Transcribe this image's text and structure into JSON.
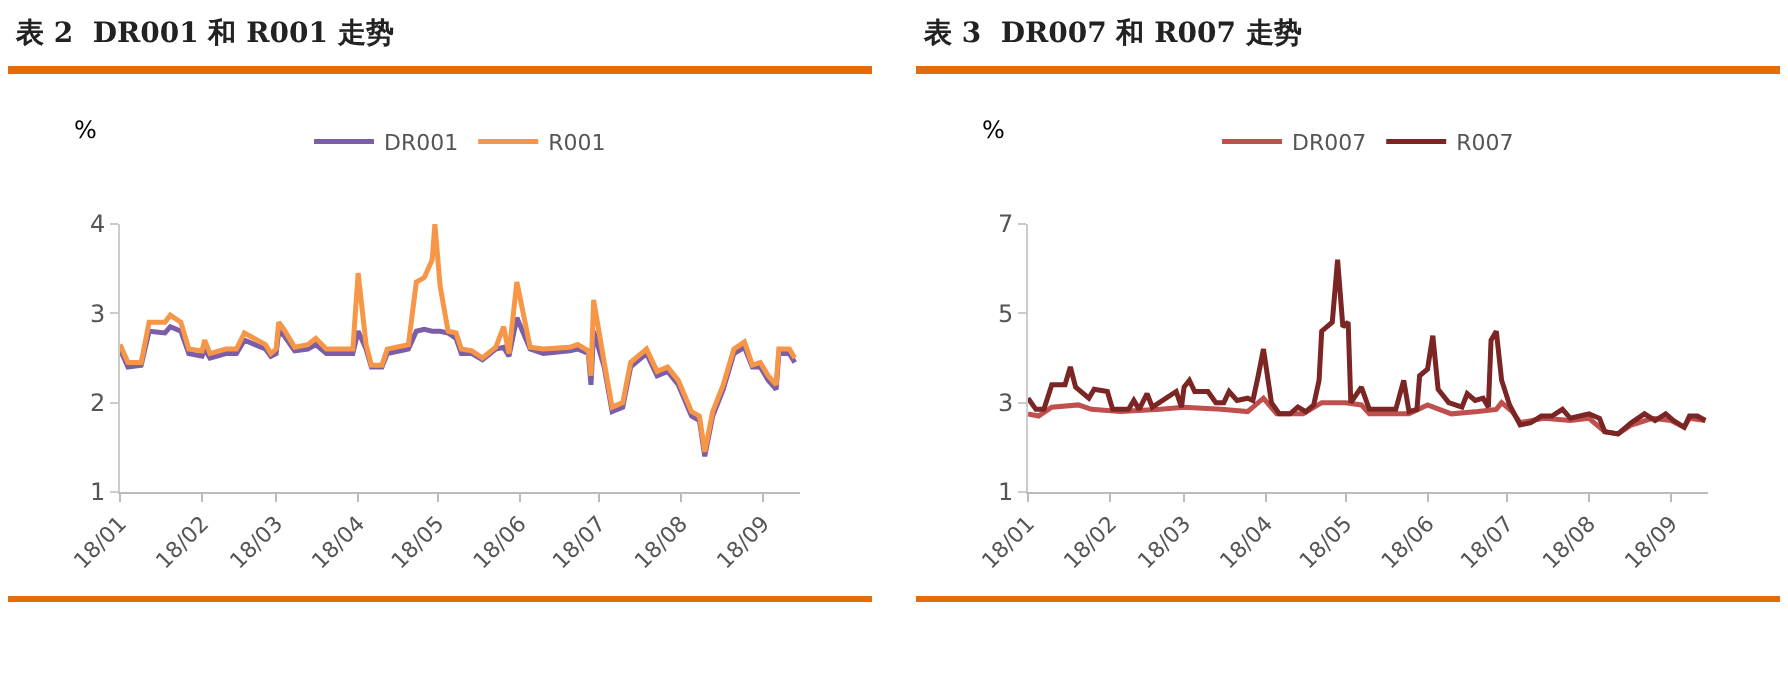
{
  "chart_data": [
    {
      "type": "line",
      "title": "表 2  DR001 和 R001 走势",
      "ylabel": "%",
      "legend": "top",
      "grid": false,
      "marker": "none",
      "line_style": "solid",
      "xlim": [
        "--01-01",
        "--09-15"
      ],
      "xticks": [
        {
          "value": "--01-01",
          "label": "18/01"
        },
        {
          "value": "--02-01",
          "label": "18/02"
        },
        {
          "value": "--03-01",
          "label": "18/03"
        },
        {
          "value": "--04-01",
          "label": "18/04"
        },
        {
          "value": "--05-01",
          "label": "18/05"
        },
        {
          "value": "--06-01",
          "label": "18/06"
        },
        {
          "value": "--07-01",
          "label": "18/07"
        },
        {
          "value": "--08-01",
          "label": "18/08"
        },
        {
          "value": "--09-01",
          "label": "18/09"
        }
      ],
      "ylim": [
        1,
        4
      ],
      "yticks": [
        1,
        2,
        3,
        4
      ],
      "x": [
        "--01-01",
        "--01-04",
        "--01-09",
        "--01-12",
        "--01-18",
        "--01-20",
        "--01-24",
        "--01-27",
        "--02-01",
        "--02-02",
        "--02-04",
        "--02-10",
        "--02-14",
        "--02-17",
        "--02-25",
        "--02-27",
        "--03-01",
        "--03-02",
        "--03-04",
        "--03-08",
        "--03-13",
        "--03-16",
        "--03-20",
        "--03-30",
        "--04-01",
        "--04-04",
        "--04-06",
        "--04-10",
        "--04-12",
        "--04-20",
        "--04-23",
        "--04-26",
        "--04-29",
        "--04-30",
        "--05-02",
        "--05-05",
        "--05-08",
        "--05-10",
        "--05-14",
        "--05-18",
        "--05-23",
        "--05-26",
        "--05-28",
        "--05-31",
        "--06-05",
        "--06-10",
        "--06-20",
        "--06-23",
        "--06-27",
        "--06-28",
        "--06-29",
        "--07-03",
        "--07-06",
        "--07-10",
        "--07-13",
        "--07-19",
        "--07-23",
        "--07-27",
        "--07-31",
        "--08-05",
        "--08-08",
        "--08-10",
        "--08-13",
        "--08-17",
        "--08-21",
        "--08-25",
        "--08-28",
        "--08-31",
        "--09-03",
        "--09-06",
        "--09-07",
        "--09-11",
        "--09-13"
      ],
      "series": [
        {
          "name": "DR001",
          "color": "#7b5ea7",
          "values": [
            2.6,
            2.4,
            2.42,
            2.8,
            2.78,
            2.85,
            2.8,
            2.55,
            2.52,
            2.6,
            2.5,
            2.55,
            2.55,
            2.7,
            2.6,
            2.52,
            2.55,
            2.8,
            2.75,
            2.58,
            2.6,
            2.65,
            2.55,
            2.55,
            2.8,
            2.6,
            2.4,
            2.4,
            2.55,
            2.6,
            2.8,
            2.82,
            2.8,
            2.8,
            2.8,
            2.78,
            2.72,
            2.55,
            2.55,
            2.48,
            2.6,
            2.62,
            2.52,
            2.95,
            2.6,
            2.55,
            2.58,
            2.6,
            2.55,
            2.2,
            2.8,
            2.4,
            1.9,
            1.95,
            2.4,
            2.55,
            2.3,
            2.35,
            2.2,
            1.85,
            1.8,
            1.4,
            1.85,
            2.15,
            2.55,
            2.62,
            2.4,
            2.4,
            2.25,
            2.15,
            2.55,
            2.55,
            2.45
          ]
        },
        {
          "name": "R001",
          "color": "#f79646",
          "values": [
            2.65,
            2.45,
            2.45,
            2.9,
            2.9,
            2.98,
            2.9,
            2.6,
            2.58,
            2.7,
            2.55,
            2.6,
            2.6,
            2.78,
            2.65,
            2.55,
            2.6,
            2.9,
            2.82,
            2.62,
            2.65,
            2.72,
            2.6,
            2.6,
            3.45,
            2.65,
            2.42,
            2.42,
            2.6,
            2.65,
            3.35,
            3.4,
            3.6,
            4.0,
            3.3,
            2.8,
            2.78,
            2.6,
            2.58,
            2.5,
            2.62,
            2.85,
            2.55,
            3.35,
            2.62,
            2.6,
            2.62,
            2.65,
            2.58,
            2.3,
            3.15,
            2.45,
            1.95,
            2.0,
            2.45,
            2.6,
            2.35,
            2.4,
            2.25,
            1.9,
            1.85,
            1.45,
            1.9,
            2.2,
            2.6,
            2.68,
            2.42,
            2.45,
            2.3,
            2.2,
            2.6,
            2.6,
            2.5
          ]
        }
      ]
    },
    {
      "type": "line",
      "title": "表 3  DR007 和 R007 走势",
      "ylabel": "%",
      "legend": "top",
      "grid": false,
      "marker": "none",
      "line_style": "solid",
      "xlim": [
        "--01-01",
        "--09-15"
      ],
      "xticks": [
        {
          "value": "--01-01",
          "label": "18/01"
        },
        {
          "value": "--02-01",
          "label": "18/02"
        },
        {
          "value": "--03-01",
          "label": "18/03"
        },
        {
          "value": "--04-01",
          "label": "18/04"
        },
        {
          "value": "--05-01",
          "label": "18/05"
        },
        {
          "value": "--06-01",
          "label": "18/06"
        },
        {
          "value": "--07-01",
          "label": "18/07"
        },
        {
          "value": "--08-01",
          "label": "18/08"
        },
        {
          "value": "--09-01",
          "label": "18/09"
        }
      ],
      "ylim": [
        1,
        7
      ],
      "yticks": [
        1,
        3,
        5,
        7
      ],
      "series": [
        {
          "name": "DR007",
          "color": "#c0504d",
          "x": [
            "--01-01",
            "--01-05",
            "--01-10",
            "--01-20",
            "--01-25",
            "--02-05",
            "--02-20",
            "--03-01",
            "--03-15",
            "--03-25",
            "--03-31",
            "--04-05",
            "--04-15",
            "--04-22",
            "--05-01",
            "--05-07",
            "--05-10",
            "--05-25",
            "--06-01",
            "--06-10",
            "--06-20",
            "--06-27",
            "--06-29",
            "--07-03",
            "--07-06",
            "--07-15",
            "--07-25",
            "--08-01",
            "--08-07",
            "--08-12",
            "--08-17",
            "--08-25",
            "--09-01",
            "--09-06",
            "--09-08",
            "--09-14"
          ],
          "values": [
            2.75,
            2.7,
            2.9,
            2.95,
            2.85,
            2.8,
            2.85,
            2.9,
            2.85,
            2.8,
            3.1,
            2.75,
            2.75,
            3.0,
            3.0,
            2.95,
            2.75,
            2.75,
            2.95,
            2.75,
            2.8,
            2.85,
            3.0,
            2.8,
            2.55,
            2.65,
            2.6,
            2.65,
            2.35,
            2.3,
            2.5,
            2.65,
            2.6,
            2.45,
            2.65,
            2.6
          ]
        },
        {
          "name": "R007",
          "color": "#7b2525",
          "x": [
            "--01-01",
            "--01-04",
            "--01-07",
            "--01-10",
            "--01-15",
            "--01-17",
            "--01-19",
            "--01-24",
            "--01-26",
            "--01-31",
            "--02-02",
            "--02-08",
            "--02-10",
            "--02-12",
            "--02-15",
            "--02-17",
            "--02-26",
            "--02-28",
            "--03-01",
            "--03-03",
            "--03-05",
            "--03-10",
            "--03-13",
            "--03-16",
            "--03-18",
            "--03-21",
            "--03-25",
            "--03-27",
            "--03-29",
            "--03-31",
            "--04-03",
            "--04-06",
            "--04-10",
            "--04-13",
            "--04-16",
            "--04-19",
            "--04-21",
            "--04-22",
            "--04-26",
            "--04-28",
            "--04-30",
            "--05-02",
            "--05-03",
            "--05-07",
            "--05-10",
            "--05-15",
            "--05-20",
            "--05-23",
            "--05-25",
            "--05-28",
            "--05-29",
            "--06-01",
            "--06-03",
            "--06-05",
            "--06-09",
            "--06-14",
            "--06-16",
            "--06-19",
            "--06-22",
            "--06-24",
            "--06-25",
            "--06-27",
            "--06-29",
            "--07-02",
            "--07-06",
            "--07-10",
            "--07-14",
            "--07-18",
            "--07-22",
            "--07-25",
            "--08-01",
            "--08-05",
            "--08-07",
            "--08-12",
            "--08-17",
            "--08-22",
            "--08-26",
            "--08-30",
            "--09-02",
            "--09-06",
            "--09-08",
            "--09-11",
            "--09-14"
          ],
          "values": [
            3.1,
            2.85,
            2.85,
            3.4,
            3.4,
            3.8,
            3.35,
            3.1,
            3.3,
            3.25,
            2.85,
            2.85,
            3.05,
            2.85,
            3.2,
            2.9,
            3.25,
            2.9,
            3.35,
            3.5,
            3.25,
            3.25,
            3.0,
            3.0,
            3.25,
            3.05,
            3.1,
            3.05,
            3.6,
            4.2,
            3.0,
            2.75,
            2.75,
            2.9,
            2.8,
            2.95,
            3.5,
            4.6,
            4.8,
            6.2,
            4.7,
            4.8,
            3.0,
            3.35,
            2.85,
            2.85,
            2.85,
            3.5,
            2.8,
            2.85,
            3.6,
            3.75,
            4.5,
            3.3,
            3.0,
            2.9,
            3.2,
            3.05,
            3.1,
            2.9,
            4.4,
            4.6,
            3.5,
            2.95,
            2.5,
            2.55,
            2.7,
            2.7,
            2.85,
            2.65,
            2.75,
            2.65,
            2.35,
            2.3,
            2.55,
            2.75,
            2.6,
            2.75,
            2.6,
            2.45,
            2.7,
            2.7,
            2.6
          ]
        }
      ]
    }
  ]
}
